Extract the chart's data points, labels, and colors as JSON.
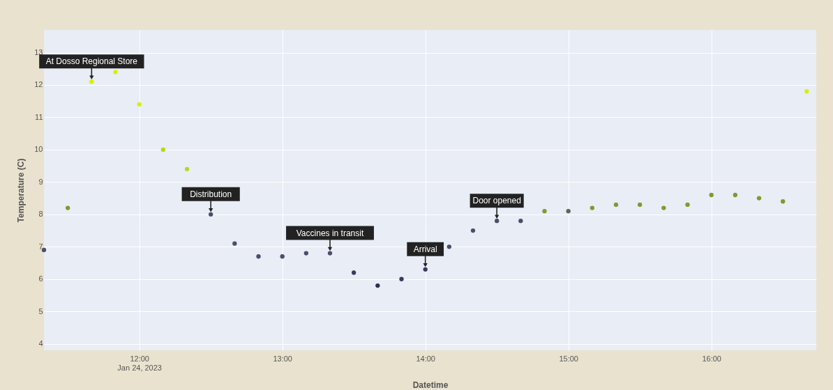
{
  "chart_data": {
    "type": "scatter",
    "xlabel": "Datetime",
    "ylabel": "Temperature (C)",
    "x": [
      "2023-01-24T11:20",
      "2023-01-24T11:30",
      "2023-01-24T11:40",
      "2023-01-24T11:50",
      "2023-01-24T12:00",
      "2023-01-24T12:10",
      "2023-01-24T12:20",
      "2023-01-24T12:30",
      "2023-01-24T12:40",
      "2023-01-24T12:50",
      "2023-01-24T13:00",
      "2023-01-24T13:10",
      "2023-01-24T13:20",
      "2023-01-24T13:30",
      "2023-01-24T13:40",
      "2023-01-24T13:50",
      "2023-01-24T14:00",
      "2023-01-24T14:10",
      "2023-01-24T14:20",
      "2023-01-24T14:30",
      "2023-01-24T14:40",
      "2023-01-24T14:50",
      "2023-01-24T15:00",
      "2023-01-24T15:10",
      "2023-01-24T15:20",
      "2023-01-24T15:30",
      "2023-01-24T15:40",
      "2023-01-24T15:50",
      "2023-01-24T16:00",
      "2023-01-24T16:10",
      "2023-01-24T16:20",
      "2023-01-24T16:30",
      "2023-01-24T16:40"
    ],
    "series": [
      {
        "values": [
          6.9,
          8.2,
          12.1,
          12.4,
          11.4,
          10.0,
          9.4,
          8.0,
          7.1,
          6.7,
          6.7,
          6.8,
          6.8,
          6.2,
          5.8,
          6.0,
          6.3,
          7.0,
          7.5,
          7.8,
          7.8,
          8.1,
          8.1,
          8.2,
          8.3,
          8.3,
          8.2,
          8.3,
          8.6,
          8.6,
          8.5,
          8.4,
          11.8
        ],
        "colors": [
          "#4a4e69",
          "#7d9b2e",
          "#d8ef00",
          "#d8ef00",
          "#d8ef00",
          "#b5d916",
          "#b5d916",
          "#4a4e69",
          "#4a4e69",
          "#4a4e69",
          "#4a4e69",
          "#4a4e69",
          "#4a4e69",
          "#3a3a5e",
          "#2e2e50",
          "#3a3a5e",
          "#3a3a5e",
          "#4a4e69",
          "#4a4e69",
          "#4a4e69",
          "#4a4e69",
          "#7d9b2e",
          "#5d6658",
          "#7d9b2e",
          "#7d9b2e",
          "#7d9b2e",
          "#7d9b2e",
          "#7d9b2e",
          "#7d9b2e",
          "#7d9b2e",
          "#7d9b2e",
          "#7d9b2e",
          "#d8ef00"
        ]
      }
    ],
    "xlim": [
      "2023-01-24T11:20",
      "2023-01-24T16:44"
    ],
    "xticks": [
      {
        "value": "2023-01-24T12:00",
        "label": "12:00\nJan 24, 2023"
      },
      {
        "value": "2023-01-24T13:00",
        "label": "13:00"
      },
      {
        "value": "2023-01-24T14:00",
        "label": "14:00"
      },
      {
        "value": "2023-01-24T15:00",
        "label": "15:00"
      },
      {
        "value": "2023-01-24T16:00",
        "label": "16:00"
      }
    ],
    "ylim": [
      3.8,
      13.7
    ],
    "yticks": [
      4,
      5,
      6,
      7,
      8,
      9,
      10,
      11,
      12,
      13
    ],
    "grid": true,
    "marker": "circle",
    "annotations": [
      {
        "text": "At Dosso Regional Store",
        "x": "2023-01-24T11:40",
        "y": 12.1
      },
      {
        "text": "Distribution",
        "x": "2023-01-24T12:30",
        "y": 8.0
      },
      {
        "text": "Vaccines in transit",
        "x": "2023-01-24T13:20",
        "y": 6.8
      },
      {
        "text": "Arrival",
        "x": "2023-01-24T14:00",
        "y": 6.3
      },
      {
        "text": "Door opened",
        "x": "2023-01-24T14:30",
        "y": 7.8
      }
    ]
  }
}
